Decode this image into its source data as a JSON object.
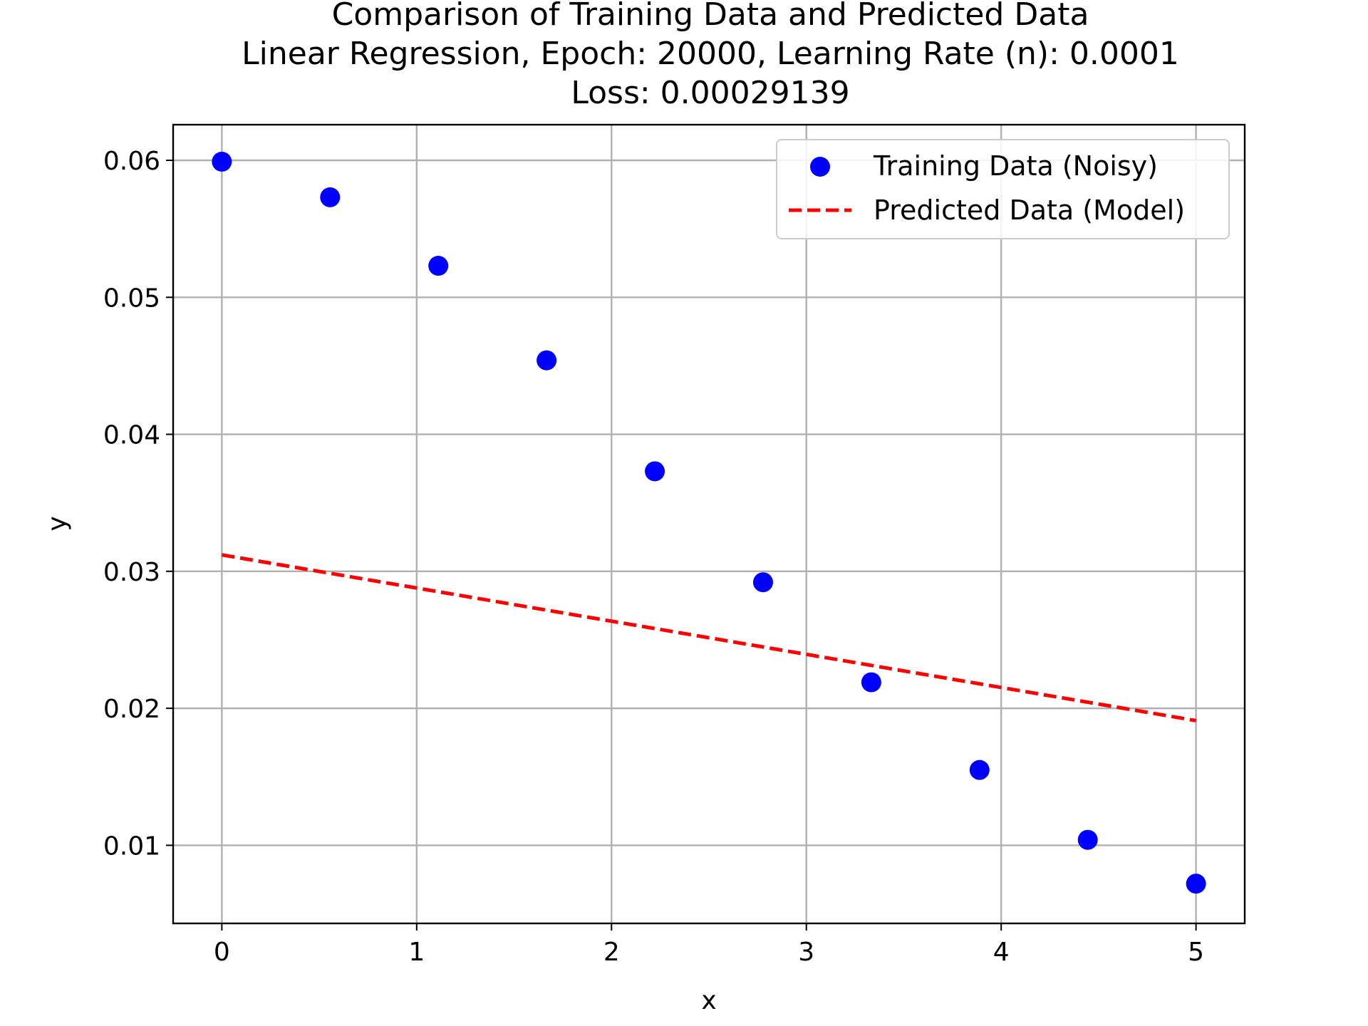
{
  "chart_data": {
    "type": "scatter",
    "title": [
      "Comparison of Training Data and Predicted Data",
      "Linear Regression, Epoch: 20000, Learning Rate (n): 0.0001",
      "Loss: 0.00029139"
    ],
    "xlabel": "x",
    "ylabel": "y",
    "xlim": [
      -0.25,
      5.25
    ],
    "ylim": [
      0.0043,
      0.0626
    ],
    "xticks": [
      0,
      1,
      2,
      3,
      4,
      5
    ],
    "xtick_labels": [
      "0",
      "1",
      "2",
      "3",
      "4",
      "5"
    ],
    "yticks": [
      0.01,
      0.02,
      0.03,
      0.04,
      0.05,
      0.06
    ],
    "ytick_labels": [
      "0.01",
      "0.02",
      "0.03",
      "0.04",
      "0.05",
      "0.06"
    ],
    "grid": true,
    "legend_position": "top-right",
    "series": [
      {
        "name": "Training Data (Noisy)",
        "kind": "scatter",
        "color": "#0000ff",
        "x": [
          0.0,
          0.5556,
          1.1111,
          1.6667,
          2.2222,
          2.7778,
          3.3333,
          3.8889,
          4.4444,
          5.0
        ],
        "y": [
          0.0599,
          0.0573,
          0.0523,
          0.0454,
          0.0373,
          0.0292,
          0.0219,
          0.0155,
          0.0104,
          0.0072
        ]
      },
      {
        "name": "Predicted Data (Model)",
        "kind": "line",
        "style": "dashed",
        "color": "#ff0000",
        "x": [
          0.0,
          5.0
        ],
        "y": [
          0.0312,
          0.0191
        ]
      }
    ]
  }
}
